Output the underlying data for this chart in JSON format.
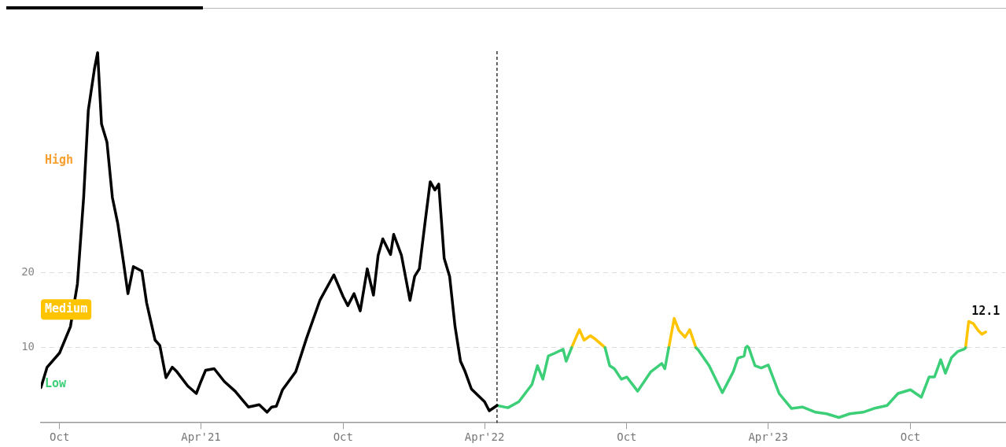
{
  "chart_data": {
    "type": "line",
    "xlim": [
      "2020-09-07",
      "2024-01-31"
    ],
    "ylim": [
      0,
      49.5
    ],
    "xticks": [
      {
        "value": "2020-10-01",
        "label": "Oct"
      },
      {
        "value": "2021-04-01",
        "label": "Apr'21"
      },
      {
        "value": "2021-10-01",
        "label": "Oct"
      },
      {
        "value": "2022-04-01",
        "label": "Apr'22"
      },
      {
        "value": "2022-10-01",
        "label": "Oct"
      },
      {
        "value": "2023-04-01",
        "label": "Apr'23"
      },
      {
        "value": "2023-10-01",
        "label": "Oct"
      }
    ],
    "yticks": [
      10,
      20
    ],
    "grid": "y",
    "legend": false,
    "marker": "none",
    "line_style": "solid",
    "series": [
      {
        "color": "#000000",
        "x": [
          "2020-09-07",
          "2020-09-15",
          "2020-10-01",
          "2020-10-15",
          "2020-10-24",
          "2020-11-01",
          "2020-11-07",
          "2020-11-15",
          "2020-11-19",
          "2020-11-24",
          "2020-12-01",
          "2020-12-08",
          "2020-12-15",
          "2020-12-22",
          "2020-12-28",
          "2021-01-04",
          "2021-01-15",
          "2021-01-21",
          "2021-02-01",
          "2021-02-07",
          "2021-02-15",
          "2021-02-23",
          "2021-03-01",
          "2021-03-15",
          "2021-03-26",
          "2021-04-01",
          "2021-04-07",
          "2021-04-18",
          "2021-05-01",
          "2021-05-15",
          "2021-06-01",
          "2021-06-15",
          "2021-06-25",
          "2021-07-01",
          "2021-07-07",
          "2021-07-15",
          "2021-08-01",
          "2021-08-15",
          "2021-09-01",
          "2021-09-19",
          "2021-10-01",
          "2021-10-07",
          "2021-10-15",
          "2021-10-23",
          "2021-11-01",
          "2021-11-09",
          "2021-11-15",
          "2021-11-21",
          "2021-12-01",
          "2021-12-05",
          "2021-12-15",
          "2021-12-26",
          "2022-01-01",
          "2022-01-07",
          "2022-01-15",
          "2022-01-21",
          "2022-01-27",
          "2022-02-01",
          "2022-02-08",
          "2022-02-15",
          "2022-02-22",
          "2022-03-01",
          "2022-03-07",
          "2022-03-15",
          "2022-03-26",
          "2022-04-01",
          "2022-04-07",
          "2022-04-17"
        ],
        "values": [
          4.7,
          7.4,
          9.3,
          12.8,
          18.5,
          30,
          41.6,
          47.2,
          49.3,
          39.8,
          37.4,
          30,
          26.5,
          21.6,
          17.2,
          20.8,
          20.2,
          16,
          11,
          10.3,
          6,
          7.4,
          6.8,
          4.9,
          3.9,
          5.5,
          7,
          7.2,
          5.5,
          4.2,
          2.1,
          2.4,
          1.4,
          2.1,
          2.2,
          4.4,
          6.8,
          11.3,
          16.3,
          19.7,
          16.8,
          15.6,
          17.2,
          14.9,
          20.5,
          17,
          22.3,
          24.5,
          22.4,
          25.1,
          22.3,
          16.3,
          19.5,
          20.5,
          27.2,
          32.1,
          31,
          31.8,
          21.9,
          19.5,
          12.8,
          8.2,
          6.8,
          4.5,
          3.4,
          2.8,
          1.6,
          2.3
        ]
      },
      {
        "color": "#3ccf78",
        "x": [
          "2022-04-17",
          "2022-05-01",
          "2022-05-15",
          "2022-06-01",
          "2022-06-08",
          "2022-06-15",
          "2022-06-22",
          "2022-07-01",
          "2022-07-11",
          "2022-07-15",
          "2022-07-22",
          "2022-08-15",
          "2022-09-03",
          "2022-09-09",
          "2022-09-15",
          "2022-09-24",
          "2022-10-01",
          "2022-10-15",
          "2022-11-01",
          "2022-11-15",
          "2022-11-19",
          "2022-11-24",
          "2022-12-15",
          "2022-12-29",
          "2023-01-01",
          "2023-01-15",
          "2023-02-01",
          "2023-02-15",
          "2023-02-21",
          "2023-03-01",
          "2023-03-03",
          "2023-03-05",
          "2023-03-07",
          "2023-03-15",
          "2023-03-23",
          "2023-04-01",
          "2023-04-15",
          "2023-05-01",
          "2023-05-15",
          "2023-06-01",
          "2023-06-15",
          "2023-07-01",
          "2023-07-15",
          "2023-08-01",
          "2023-08-15",
          "2023-09-01",
          "2023-09-15",
          "2023-10-01",
          "2023-10-15",
          "2023-10-25",
          "2023-11-01",
          "2023-11-09",
          "2023-11-15",
          "2023-11-23",
          "2023-12-01",
          "2023-12-09",
          "2023-12-11"
        ],
        "values": [
          2.3,
          2,
          2.8,
          5.1,
          7.6,
          5.8,
          8.9,
          9.3,
          9.8,
          8.2,
          10,
          null,
          10,
          7.6,
          7.2,
          5.8,
          6.1,
          4.2,
          6.8,
          7.9,
          7.2,
          10,
          null,
          10,
          9.7,
          7.6,
          4,
          6.8,
          8.6,
          8.9,
          10,
          10.2,
          10,
          7.6,
          7.3,
          7.7,
          3.9,
          1.9,
          2.1,
          1.4,
          1.2,
          0.7,
          1.2,
          1.4,
          1.9,
          2.3,
          3.9,
          4.4,
          3.4,
          6.1,
          6.1,
          8.4,
          6.6,
          8.7,
          9.5,
          9.8,
          10
        ]
      },
      {
        "color": "#ffc400",
        "x": [
          "2022-07-22",
          "2022-08-01",
          "2022-08-07",
          "2022-08-15",
          "2022-08-22",
          "2022-09-01",
          "2022-09-03",
          "2022-10-15",
          "2022-11-24",
          "2022-12-01",
          "2022-12-07",
          "2022-12-15",
          "2022-12-21",
          "2022-12-29",
          "2023-06-01",
          "2023-12-11",
          "2023-12-15",
          "2023-12-21",
          "2023-12-27",
          "2024-01-01",
          "2024-01-06"
        ],
        "values": [
          10,
          12.4,
          11,
          11.6,
          11.1,
          10.2,
          10,
          null,
          10,
          13.9,
          12.3,
          11.4,
          12.4,
          10,
          null,
          10,
          13.5,
          13.2,
          12.3,
          11.8,
          12.1
        ],
        "value_labels": [
          null,
          null,
          null,
          null,
          null,
          null,
          null,
          null,
          null,
          null,
          null,
          null,
          null,
          null,
          null,
          null,
          null,
          null,
          null,
          null,
          "12.1"
        ]
      }
    ],
    "ref_lines": [
      {
        "axis": "x",
        "value": "2022-04-17",
        "color": "#000000",
        "line_style": "dashed"
      }
    ],
    "annotations": [
      "High",
      "Medium",
      "Low"
    ]
  }
}
